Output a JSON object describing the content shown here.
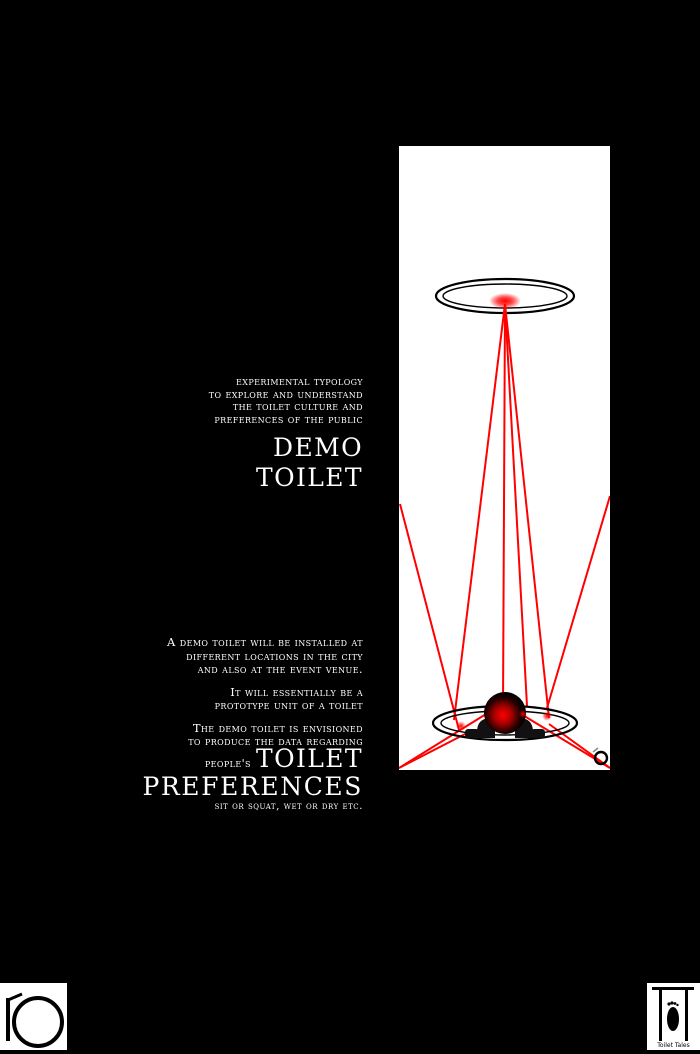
{
  "intro": {
    "lines": [
      "experimental typology",
      "to explore and understand",
      "the toilet culture and",
      "preferences of the public"
    ]
  },
  "title": {
    "line1": "DEMO",
    "line2": "TOILET"
  },
  "description": {
    "para1": [
      "A demo toilet will be installed at",
      "different locations in the city",
      "and also at the event venue."
    ],
    "para2": [
      "It will essentially be a",
      "prototype unit of a toilet"
    ],
    "para3": [
      "The demo toilet is envisioned",
      "to produce the data regarding"
    ]
  },
  "preferences": {
    "prefix": "people's",
    "word1": "TOILET",
    "word2": "PREFERENCES",
    "note": "sit or squat, wet or dry etc."
  },
  "logos": {
    "right_caption": "Toilet Tales"
  },
  "colors": {
    "background": "#000000",
    "text": "#ffffff",
    "panel": "#ffffff",
    "laser": "#ff0000"
  }
}
